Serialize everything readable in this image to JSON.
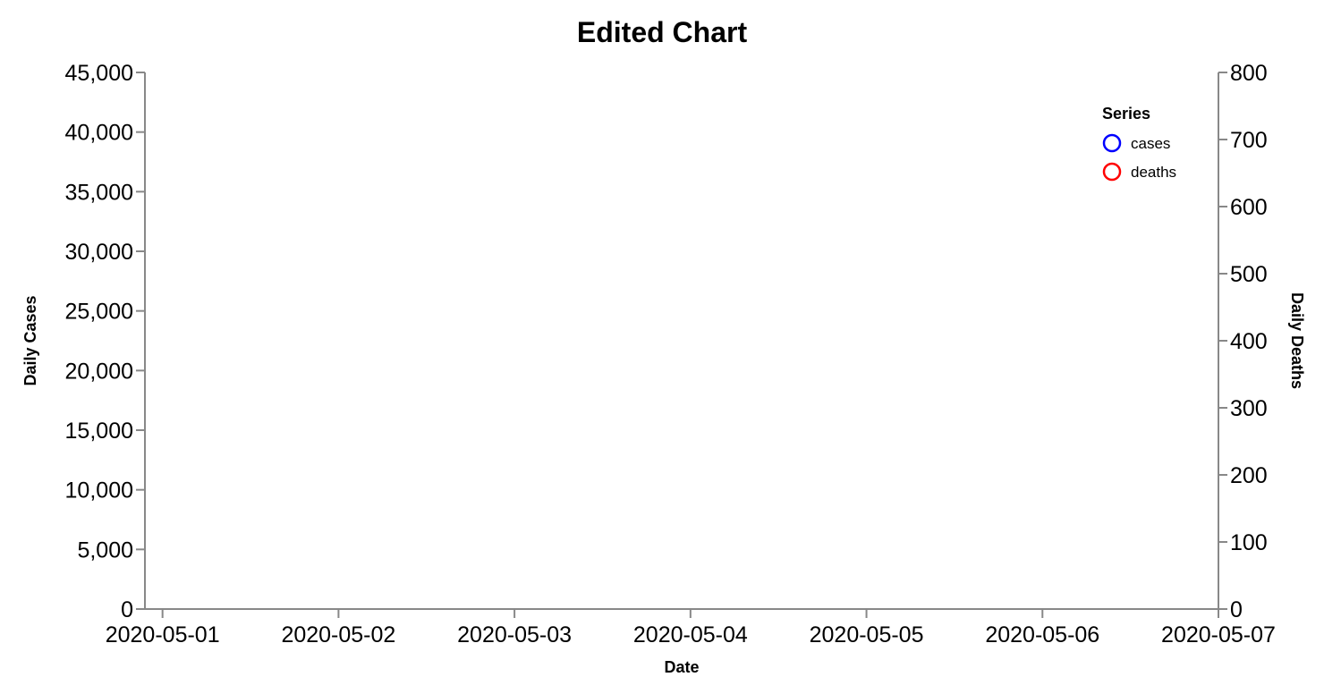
{
  "chart_data": {
    "type": "line",
    "title": "Edited Chart",
    "xlabel": "Date",
    "ylabel": "Daily Cases",
    "y2label": "Daily Deaths",
    "x_ticks": [
      "2020-05-01",
      "2020-05-02",
      "2020-05-03",
      "2020-05-04",
      "2020-05-05",
      "2020-05-06",
      "2020-05-07"
    ],
    "xlim": [
      "2020-04-30T21:36",
      "2020-05-07"
    ],
    "ylim": [
      0,
      45000
    ],
    "y_ticks": [
      "0",
      "5,000",
      "10,000",
      "15,000",
      "20,000",
      "25,000",
      "30,000",
      "35,000",
      "40,000",
      "45,000"
    ],
    "y2lim": [
      0,
      800
    ],
    "y2_ticks": [
      "0",
      "100",
      "200",
      "300",
      "400",
      "500",
      "600",
      "700",
      "800"
    ],
    "grid": false,
    "legend": {
      "title": "Series",
      "placement": "top-right",
      "items": [
        {
          "label": "cases",
          "color": "#0000ff"
        },
        {
          "label": "deaths",
          "color": "#ff0000"
        }
      ]
    },
    "series": [
      {
        "name": "cases",
        "axis": "left",
        "color": "#0000ff",
        "x": [],
        "values": []
      },
      {
        "name": "deaths",
        "axis": "right",
        "color": "#ff0000",
        "x": [],
        "values": []
      }
    ]
  }
}
